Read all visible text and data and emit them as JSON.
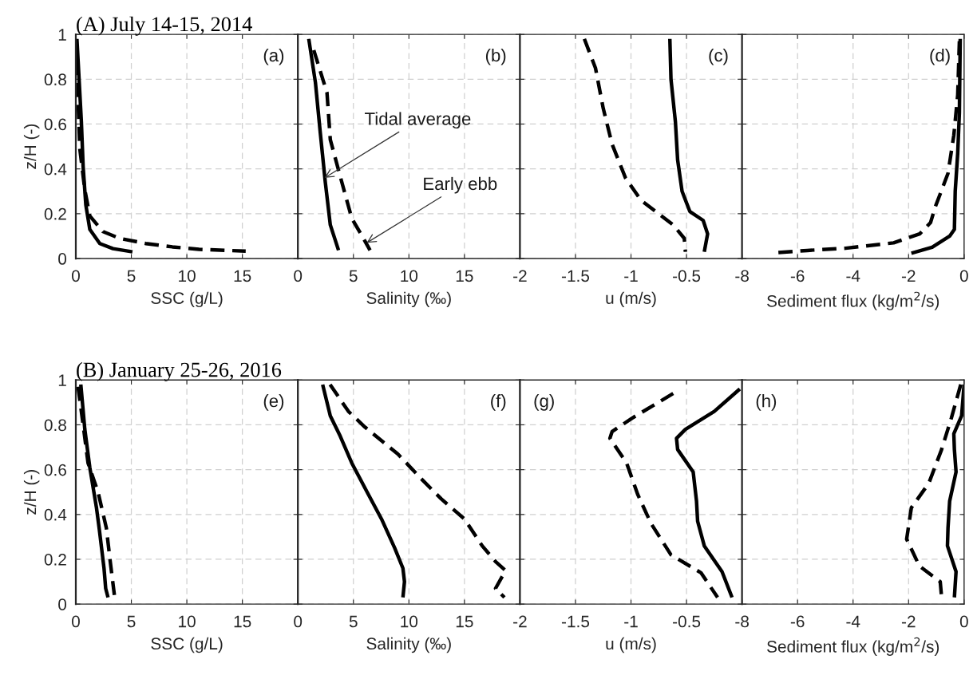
{
  "chart_data": [
    {
      "type": "line",
      "title": "(A) July 14-15, 2014",
      "xlabel": "SSC (g/L)",
      "ylabel": "z/H (-)",
      "xlim": [
        0,
        20
      ],
      "xticks": [
        0,
        5,
        10,
        15
      ],
      "ylim": [
        0,
        1
      ],
      "yticks": [
        0,
        0.2,
        0.4,
        0.6,
        0.8,
        1
      ],
      "grid": true,
      "annotations": [
        "(a)"
      ],
      "series": [
        {
          "color": "#000000",
          "line_style": "solid",
          "x": [
            0.1,
            0.5,
            0.66,
            0.9,
            1.26,
            2.16,
            3.35,
            5.1
          ],
          "values": [
            0.98,
            0.61,
            0.41,
            0.24,
            0.13,
            0.067,
            0.044,
            0.03
          ]
        },
        {
          "color": "#000000",
          "line_style": "dashed",
          "x": [
            0,
            0.2,
            0.36,
            0.8,
            1.26,
            2.45,
            3.95,
            6.3,
            8.7,
            11.1,
            15.3
          ],
          "values": [
            0.98,
            0.71,
            0.49,
            0.31,
            0.19,
            0.12,
            0.09,
            0.067,
            0.052,
            0.041,
            0.033
          ]
        }
      ]
    },
    {
      "type": "line",
      "xlabel": "Salinity (‰)",
      "xlim": [
        0,
        20
      ],
      "xticks": [
        0,
        5,
        10,
        15
      ],
      "ylim": [
        0,
        1
      ],
      "yticks": [
        0,
        0.2,
        0.4,
        0.6,
        0.8,
        1
      ],
      "tick_labels": "x",
      "grid": true,
      "annotations": [
        "(b)",
        {
          "text": "Tidal average",
          "x": 2.4,
          "y": 0.36
        },
        {
          "text": "Early ebb",
          "x": 6.2,
          "y": 0.07
        }
      ],
      "series": [
        {
          "color": "#000000",
          "line_style": "solid",
          "x": [
            0.98,
            1.58,
            2.02,
            2.47,
            2.92,
            3.66
          ],
          "values": [
            0.98,
            0.785,
            0.56,
            0.34,
            0.15,
            0.037
          ]
        },
        {
          "color": "#000000",
          "line_style": "dashed",
          "x": [
            1.43,
            2.62,
            2.92,
            3.96,
            4.85,
            5.9,
            6.5
          ],
          "values": [
            0.93,
            0.74,
            0.53,
            0.34,
            0.18,
            0.09,
            0.037
          ]
        }
      ]
    },
    {
      "type": "line",
      "xlabel": "u (m/s)",
      "xlim": [
        -2,
        0
      ],
      "xticks": [
        -2,
        -1.5,
        -1,
        -0.5
      ],
      "ylim": [
        0,
        1
      ],
      "yticks": [
        0,
        0.2,
        0.4,
        0.6,
        0.8,
        1
      ],
      "tick_labels": "x",
      "grid": true,
      "annotations": [
        "(c)"
      ],
      "series": [
        {
          "color": "#000000",
          "line_style": "solid",
          "x": [
            -0.65,
            -0.64,
            -0.6,
            -0.58,
            -0.54,
            -0.47,
            -0.35,
            -0.31,
            -0.34
          ],
          "values": [
            0.98,
            0.8,
            0.61,
            0.44,
            0.3,
            0.21,
            0.17,
            0.11,
            0.03
          ]
        },
        {
          "color": "#000000",
          "line_style": "dashed",
          "x": [
            -1.42,
            -1.32,
            -1.25,
            -1.17,
            -1.05,
            -0.91,
            -0.62,
            -0.52,
            -0.51
          ],
          "values": [
            0.98,
            0.85,
            0.67,
            0.51,
            0.36,
            0.26,
            0.15,
            0.09,
            0.03
          ]
        }
      ]
    },
    {
      "type": "line",
      "xlabel": "Sediment flux (kg/m$^{2}$/s)",
      "xlim": [
        -8,
        0
      ],
      "xticks": [
        -8,
        -6,
        -4,
        -2,
        0
      ],
      "ylim": [
        0,
        1
      ],
      "yticks": [
        0,
        0.2,
        0.4,
        0.6,
        0.8,
        1
      ],
      "tick_labels": "x",
      "grid": true,
      "annotations": [
        "(d)"
      ],
      "series": [
        {
          "color": "#000000",
          "line_style": "solid",
          "x": [
            -0.14,
            -0.17,
            -0.23,
            -0.32,
            -0.35,
            -0.52,
            -1.15,
            -1.9
          ],
          "values": [
            0.98,
            0.65,
            0.47,
            0.3,
            0.13,
            0.1,
            0.05,
            0.024
          ]
        },
        {
          "color": "#000000",
          "line_style": "dashed",
          "x": [
            -0.17,
            -0.23,
            -0.37,
            -0.58,
            -1.04,
            -1.21,
            -1.6,
            -2.54,
            -4.27,
            -5.65,
            -6.8
          ],
          "values": [
            0.97,
            0.73,
            0.55,
            0.38,
            0.23,
            0.16,
            0.11,
            0.07,
            0.046,
            0.036,
            0.026
          ]
        }
      ]
    },
    {
      "type": "line",
      "title": "(B) January 25-26, 2016",
      "xlabel": "SSC (g/L)",
      "ylabel": "z/H (-)",
      "xlim": [
        0,
        20
      ],
      "xticks": [
        0,
        5,
        10,
        15
      ],
      "ylim": [
        0,
        1
      ],
      "yticks": [
        0,
        0.2,
        0.4,
        0.6,
        0.8,
        1
      ],
      "grid": true,
      "annotations": [
        "(e)"
      ],
      "series": [
        {
          "color": "#000000",
          "line_style": "solid",
          "x": [
            0.45,
            0.81,
            1.26,
            1.86,
            2.1,
            2.54,
            2.69,
            2.9
          ],
          "values": [
            0.98,
            0.78,
            0.61,
            0.43,
            0.34,
            0.16,
            0.07,
            0.03
          ]
        },
        {
          "color": "#000000",
          "line_style": "dashed",
          "x": [
            0.2,
            0.66,
            1.1,
            2.0,
            2.75,
            3.1,
            3.5
          ],
          "values": [
            0.97,
            0.8,
            0.63,
            0.5,
            0.34,
            0.19,
            0.03
          ]
        }
      ]
    },
    {
      "type": "line",
      "xlabel": "Salinity (‰)",
      "xlim": [
        0,
        20
      ],
      "xticks": [
        0,
        5,
        10,
        15
      ],
      "ylim": [
        0,
        1
      ],
      "yticks": [
        0,
        0.2,
        0.4,
        0.6,
        0.8,
        1
      ],
      "tick_labels": "x",
      "grid": true,
      "annotations": [
        "(f)"
      ],
      "series": [
        {
          "color": "#000000",
          "line_style": "solid",
          "x": [
            2.23,
            2.92,
            3.81,
            4.85,
            6.34,
            7.53,
            8.72,
            9.46,
            9.6,
            9.46
          ],
          "values": [
            0.98,
            0.84,
            0.75,
            0.63,
            0.49,
            0.38,
            0.25,
            0.16,
            0.1,
            0.03
          ]
        },
        {
          "color": "#000000",
          "line_style": "dashed",
          "x": [
            2.9,
            4.55,
            6.04,
            9.0,
            11.1,
            12.9,
            15.0,
            16.6,
            17.8,
            18.7,
            17.8,
            18.6
          ],
          "values": [
            0.98,
            0.86,
            0.79,
            0.67,
            0.56,
            0.47,
            0.38,
            0.26,
            0.19,
            0.15,
            0.07,
            0.03
          ]
        }
      ]
    },
    {
      "type": "line",
      "xlabel": "u (m/s)",
      "xlim": [
        -2,
        0
      ],
      "xticks": [
        -2,
        -1.5,
        -1,
        -0.5
      ],
      "ylim": [
        0,
        1
      ],
      "yticks": [
        0,
        0.2,
        0.4,
        0.6,
        0.8,
        1
      ],
      "tick_labels": "x",
      "grid": true,
      "annotations": [
        "(g)"
      ],
      "series": [
        {
          "color": "#000000",
          "line_style": "solid",
          "x": [
            -0.02,
            -0.25,
            -0.51,
            -0.59,
            -0.58,
            -0.44,
            -0.41,
            -0.4,
            -0.34,
            -0.18,
            -0.09
          ],
          "values": [
            0.96,
            0.86,
            0.78,
            0.74,
            0.69,
            0.59,
            0.46,
            0.37,
            0.26,
            0.145,
            0.03
          ]
        },
        {
          "color": "#000000",
          "line_style": "dashed",
          "x": [
            -0.62,
            -0.99,
            -1.17,
            -1.19,
            -1.04,
            -0.94,
            -0.82,
            -0.64,
            -0.37,
            -0.22
          ],
          "values": [
            0.94,
            0.83,
            0.77,
            0.74,
            0.63,
            0.49,
            0.36,
            0.22,
            0.14,
            0.03
          ]
        }
      ]
    },
    {
      "type": "line",
      "xlabel": "Sediment flux (kg/m$^{2}$/s)",
      "xlim": [
        -8,
        0
      ],
      "xticks": [
        -8,
        -6,
        -4,
        -2,
        0
      ],
      "ylim": [
        0,
        1
      ],
      "yticks": [
        0,
        0.2,
        0.4,
        0.6,
        0.8,
        1
      ],
      "tick_labels": "x",
      "grid": true,
      "annotations": [
        "(h)"
      ],
      "series": [
        {
          "color": "#000000",
          "line_style": "solid",
          "x": [
            0,
            -0.09,
            -0.37,
            -0.35,
            -0.29,
            -0.52,
            -0.58,
            -0.6,
            -0.29,
            -0.35
          ],
          "values": [
            0.98,
            0.84,
            0.76,
            0.69,
            0.59,
            0.46,
            0.34,
            0.26,
            0.145,
            0.03
          ]
        },
        {
          "color": "#000000",
          "line_style": "dashed",
          "x": [
            -0.12,
            -0.46,
            -0.81,
            -1.27,
            -1.9,
            -2.07,
            -1.61,
            -0.86,
            -0.81
          ],
          "values": [
            0.98,
            0.83,
            0.69,
            0.54,
            0.43,
            0.29,
            0.17,
            0.1,
            0.03
          ]
        }
      ]
    }
  ]
}
